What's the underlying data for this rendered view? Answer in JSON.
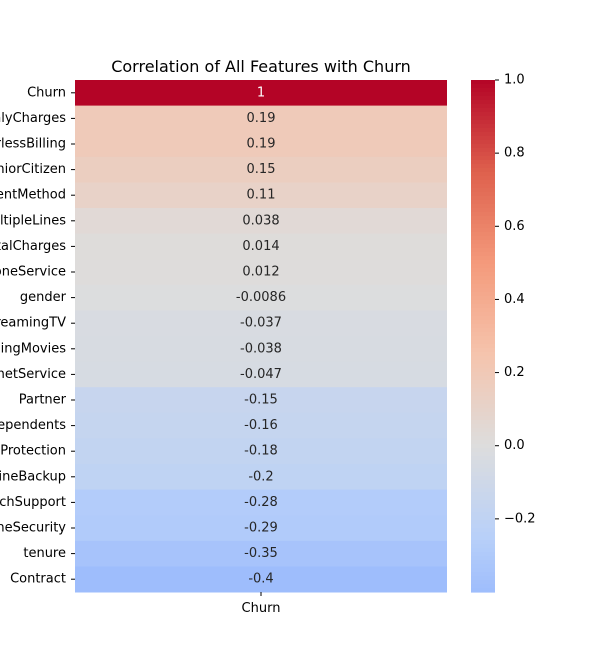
{
  "chart_data": {
    "type": "heatmap",
    "title": "Correlation of All Features with Churn",
    "columns": [
      "Churn"
    ],
    "rows": [
      {
        "label": "Churn",
        "value": 1,
        "text": "1"
      },
      {
        "label": "MonthlyCharges",
        "value": 0.19,
        "text": "0.19"
      },
      {
        "label": "PaperlessBilling",
        "value": 0.19,
        "text": "0.19"
      },
      {
        "label": "SeniorCitizen",
        "value": 0.15,
        "text": "0.15"
      },
      {
        "label": "PaymentMethod",
        "value": 0.11,
        "text": "0.11"
      },
      {
        "label": "MultipleLines",
        "value": 0.038,
        "text": "0.038"
      },
      {
        "label": "TotalCharges",
        "value": 0.014,
        "text": "0.014"
      },
      {
        "label": "PhoneService",
        "value": 0.012,
        "text": "0.012"
      },
      {
        "label": "gender",
        "value": -0.0086,
        "text": "-0.0086"
      },
      {
        "label": "StreamingTV",
        "value": -0.037,
        "text": "-0.037"
      },
      {
        "label": "StreamingMovies",
        "value": -0.038,
        "text": "-0.038"
      },
      {
        "label": "InternetService",
        "value": -0.047,
        "text": "-0.047"
      },
      {
        "label": "Partner",
        "value": -0.15,
        "text": "-0.15"
      },
      {
        "label": "Dependents",
        "value": -0.16,
        "text": "-0.16"
      },
      {
        "label": "DeviceProtection",
        "value": -0.18,
        "text": "-0.18"
      },
      {
        "label": "OnlineBackup",
        "value": -0.2,
        "text": "-0.2"
      },
      {
        "label": "TechSupport",
        "value": -0.28,
        "text": "-0.28"
      },
      {
        "label": "OnlineSecurity",
        "value": -0.29,
        "text": "-0.29"
      },
      {
        "label": "tenure",
        "value": -0.35,
        "text": "-0.35"
      },
      {
        "label": "Contract",
        "value": -0.4,
        "text": "-0.4"
      }
    ],
    "colorbar": {
      "colormap": "coolwarm",
      "min": -0.4,
      "max": 1.0,
      "ticks": [
        {
          "value": 1.0,
          "label": "1.0"
        },
        {
          "value": 0.8,
          "label": "0.8"
        },
        {
          "value": 0.6,
          "label": "0.6"
        },
        {
          "value": 0.4,
          "label": "0.4"
        },
        {
          "value": 0.2,
          "label": "0.2"
        },
        {
          "value": 0.0,
          "label": "0.0"
        },
        {
          "value": -0.2,
          "label": "−0.2"
        }
      ]
    }
  }
}
